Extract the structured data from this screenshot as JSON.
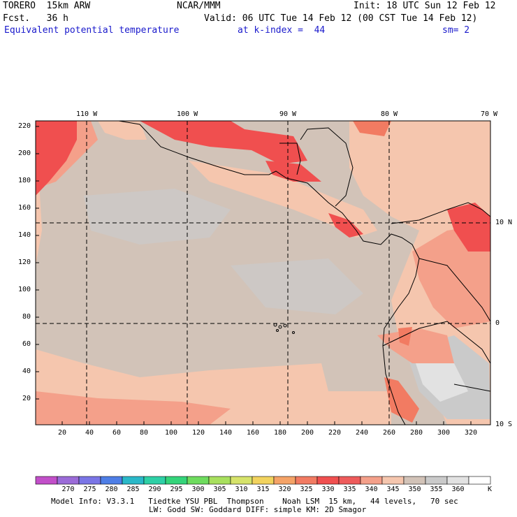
{
  "header": {
    "model": "TORERO  15km ARW",
    "org": "NCAR/MMM",
    "init": "Init: 18 UTC Sun 12 Feb 12",
    "fcst": "Fcst.   36 h",
    "valid": "Valid: 06 UTC Tue 14 Feb 12 (00 CST Tue 14 Feb 12)",
    "field": "Equivalent potential temperature",
    "level": "at k-index =  44",
    "smoothing": "sm= 2"
  },
  "map": {
    "top_lon_labels": [
      "110 W",
      "100 W",
      "90 W",
      "80 W",
      "70 W"
    ],
    "right_lat_labels": [
      "10 N",
      "0",
      "10 S"
    ],
    "left_axis_ticks": [
      "220",
      "200",
      "180",
      "160",
      "140",
      "120",
      "100",
      "80",
      "60",
      "40",
      "20"
    ],
    "bottom_axis_ticks": [
      "20",
      "40",
      "60",
      "80",
      "100",
      "120",
      "140",
      "160",
      "180",
      "200",
      "220",
      "240",
      "260",
      "280",
      "300",
      "320"
    ]
  },
  "colorbar": {
    "levels": [
      "270",
      "275",
      "280",
      "285",
      "290",
      "295",
      "300",
      "305",
      "310",
      "315",
      "320",
      "325",
      "330",
      "335",
      "340",
      "345",
      "350",
      "355",
      "360"
    ],
    "unit": "K",
    "colors": [
      "#c24fc9",
      "#9b6bd8",
      "#7a75e6",
      "#4e7ee6",
      "#2ab8c8",
      "#2ed0a6",
      "#34d47a",
      "#6edc5e",
      "#a8e05e",
      "#d6e36a",
      "#f2d35e",
      "#f5a367",
      "#f27b62",
      "#f04f4f",
      "#ee5b5b",
      "#f4a08a",
      "#f5c6ae",
      "#d2c3b8",
      "#cacaca",
      "#e2e2e2",
      "#ffffff"
    ]
  },
  "footer": {
    "line1": "Model Info: V3.3.1   Tiedtke YSU PBL  Thompson    Noah LSM  15 km,   44 levels,   70 sec",
    "line2": "LW: Godd SW: Goddard DIFF: simple KM: 2D Smagor"
  }
}
